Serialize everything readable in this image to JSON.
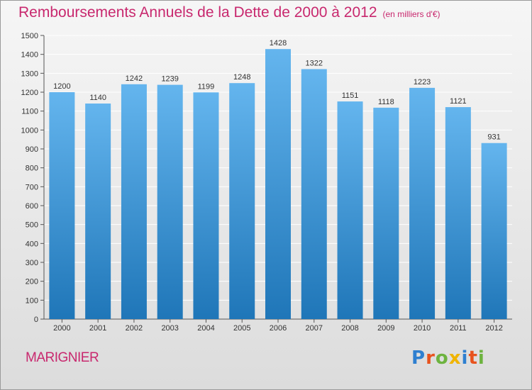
{
  "header": {
    "title": "Remboursements Annuels de la Dette de 2000 à 2012",
    "unit": "(en milliers d'€)"
  },
  "footer": {
    "commune": "MARIGNIER",
    "logo_text": "Proxiti",
    "logo_colors": [
      "#2e7fd0",
      "#e8531e",
      "#6db33f",
      "#f0b400",
      "#2e7fd0",
      "#e8531e",
      "#6db33f"
    ]
  },
  "colors": {
    "title": "#c8286e",
    "bar_top": "#64b5ee",
    "bar_bottom": "#1f76b8",
    "grid": "#ffffff",
    "axis": "#555555"
  },
  "chart_data": {
    "type": "bar",
    "title": "Remboursements Annuels de la Dette de 2000 à 2012",
    "ylabel": "",
    "xlabel": "",
    "categories": [
      "2000",
      "2001",
      "2002",
      "2003",
      "2004",
      "2005",
      "2006",
      "2007",
      "2008",
      "2009",
      "2010",
      "2011",
      "2012"
    ],
    "values": [
      1200,
      1140,
      1242,
      1239,
      1199,
      1248,
      1428,
      1322,
      1151,
      1118,
      1223,
      1121,
      931
    ],
    "ylim": [
      0,
      1500
    ],
    "yticks": [
      0,
      100,
      200,
      300,
      400,
      500,
      600,
      700,
      800,
      900,
      1000,
      1100,
      1200,
      1300,
      1400,
      1500
    ],
    "grid": true,
    "data_labels": true
  }
}
